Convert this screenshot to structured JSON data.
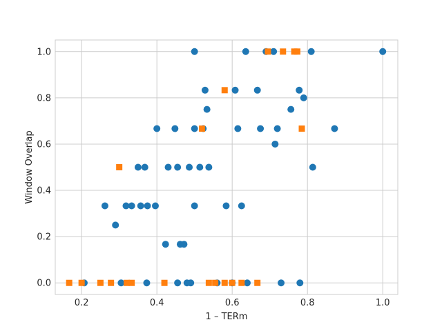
{
  "chart_data": {
    "type": "scatter",
    "title": "",
    "xlabel": "1 – TERm",
    "ylabel": "Window Overlap",
    "xlim": [
      0.13,
      1.04
    ],
    "ylim": [
      -0.05,
      1.05
    ],
    "xticks": [
      0.2,
      0.4,
      0.6,
      0.8,
      1.0
    ],
    "xtick_labels": [
      "0.2",
      "0.4",
      "0.6",
      "0.8",
      "1.0"
    ],
    "yticks": [
      0.0,
      0.2,
      0.4,
      0.6,
      0.8,
      1.0
    ],
    "ytick_labels": [
      "0.0",
      "0.2",
      "0.4",
      "0.6",
      "0.8",
      "1.0"
    ],
    "grid": true,
    "legend": "none",
    "series": [
      {
        "marker": "circle",
        "color": "#1f77b4",
        "points": [
          [
            0.5,
            1.0
          ],
          [
            0.636,
            1.0
          ],
          [
            0.69,
            1.0
          ],
          [
            0.71,
            1.0
          ],
          [
            0.81,
            1.0
          ],
          [
            1.0,
            1.0
          ],
          [
            0.528,
            0.833
          ],
          [
            0.608,
            0.833
          ],
          [
            0.667,
            0.833
          ],
          [
            0.778,
            0.833
          ],
          [
            0.79,
            0.8
          ],
          [
            0.533,
            0.75
          ],
          [
            0.756,
            0.75
          ],
          [
            0.4,
            0.667
          ],
          [
            0.448,
            0.667
          ],
          [
            0.5,
            0.667
          ],
          [
            0.523,
            0.667
          ],
          [
            0.615,
            0.667
          ],
          [
            0.675,
            0.667
          ],
          [
            0.72,
            0.667
          ],
          [
            0.872,
            0.667
          ],
          [
            0.714,
            0.6
          ],
          [
            0.35,
            0.5
          ],
          [
            0.368,
            0.5
          ],
          [
            0.43,
            0.5
          ],
          [
            0.455,
            0.5
          ],
          [
            0.486,
            0.5
          ],
          [
            0.514,
            0.5
          ],
          [
            0.538,
            0.5
          ],
          [
            0.814,
            0.5
          ],
          [
            0.262,
            0.333
          ],
          [
            0.318,
            0.333
          ],
          [
            0.333,
            0.333
          ],
          [
            0.357,
            0.333
          ],
          [
            0.375,
            0.333
          ],
          [
            0.396,
            0.333
          ],
          [
            0.5,
            0.333
          ],
          [
            0.584,
            0.333
          ],
          [
            0.625,
            0.333
          ],
          [
            0.29,
            0.25
          ],
          [
            0.423,
            0.167
          ],
          [
            0.462,
            0.167
          ],
          [
            0.472,
            0.167
          ],
          [
            0.207,
            0.0
          ],
          [
            0.305,
            0.0
          ],
          [
            0.373,
            0.0
          ],
          [
            0.455,
            0.0
          ],
          [
            0.48,
            0.0
          ],
          [
            0.49,
            0.0
          ],
          [
            0.56,
            0.0
          ],
          [
            0.6,
            0.0
          ],
          [
            0.64,
            0.0
          ],
          [
            0.73,
            0.0
          ],
          [
            0.78,
            0.0
          ]
        ]
      },
      {
        "marker": "square",
        "color": "#ff7f0e",
        "points": [
          [
            0.695,
            1.0
          ],
          [
            0.735,
            1.0
          ],
          [
            0.765,
            1.0
          ],
          [
            0.773,
            1.0
          ],
          [
            0.58,
            0.833
          ],
          [
            0.52,
            0.667
          ],
          [
            0.785,
            0.667
          ],
          [
            0.3,
            0.5
          ],
          [
            0.167,
            0.0
          ],
          [
            0.2,
            0.0
          ],
          [
            0.25,
            0.0
          ],
          [
            0.278,
            0.0
          ],
          [
            0.32,
            0.0
          ],
          [
            0.333,
            0.0
          ],
          [
            0.42,
            0.0
          ],
          [
            0.538,
            0.0
          ],
          [
            0.555,
            0.0
          ],
          [
            0.58,
            0.0
          ],
          [
            0.6,
            0.0
          ],
          [
            0.625,
            0.0
          ],
          [
            0.667,
            0.0
          ]
        ]
      }
    ]
  }
}
